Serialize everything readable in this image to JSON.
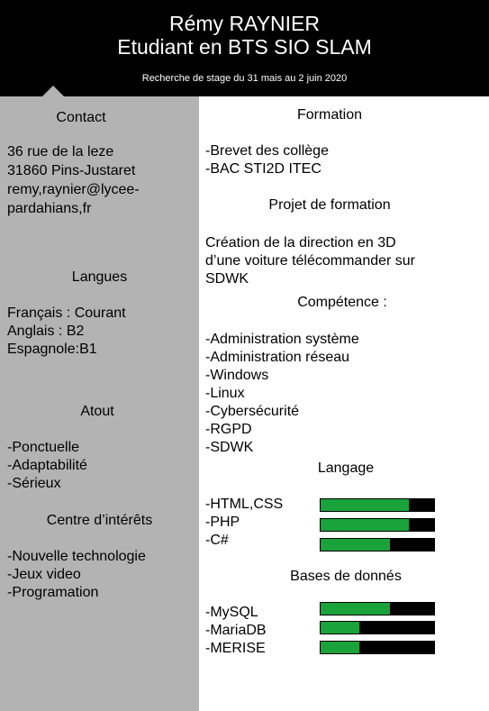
{
  "header": {
    "name": "Rémy RAYNIER",
    "title": "Etudiant en BTS SIO SLAM",
    "subtitle": "Recherche de stage du 31 mais au 2 juin 2020"
  },
  "sidebar": {
    "contact": {
      "heading": "Contact",
      "lines": [
        "36 rue de la leze",
        "31860 Pins-Justaret",
        "remy,raynier@lycee-",
        "pardahians,fr"
      ]
    },
    "langues": {
      "heading": "Langues",
      "lines": [
        "Français : Courant",
        "Anglais : B2",
        "Espagnole:B1"
      ]
    },
    "atout": {
      "heading": "Atout",
      "lines": [
        "-Ponctuelle",
        "-Adaptabilité",
        "-Sérieux"
      ]
    },
    "interets": {
      "heading": "Centre d’intérêts",
      "lines": [
        "-Nouvelle technologie",
        "-Jeux video",
        "-Programation"
      ]
    }
  },
  "main": {
    "formation": {
      "heading": "Formation",
      "lines": [
        "-Brevet des collège",
        "-BAC STI2D ITEC"
      ]
    },
    "projet": {
      "heading": "Projet de formation",
      "lines": [
        "Création de la direction en 3D",
        "d’une voiture télécommander sur",
        "SDWK"
      ]
    },
    "competence": {
      "heading": "Compétence :",
      "lines": [
        "-Administration système",
        "-Administration réseau",
        "-Windows",
        "-Linux",
        "-Cybersécurité",
        "-RGPD",
        "-SDWK"
      ]
    },
    "langage": {
      "heading": "Langage",
      "skills": [
        {
          "label": "-HTML,CSS",
          "level": 0.78
        },
        {
          "label": "-PHP",
          "level": 0.78
        },
        {
          "label": "-C#",
          "level": 0.61
        }
      ]
    },
    "bdd": {
      "heading": "Bases de donnés",
      "skills": [
        {
          "label": "-MySQL",
          "level": 0.61
        },
        {
          "label": "-MariaDB",
          "level": 0.34
        },
        {
          "label": "-MERISE",
          "level": 0.34
        }
      ]
    }
  },
  "colors": {
    "header_bg": "#000000",
    "sidebar_bg": "#b3b3b3",
    "bar_fill": "#1aa33b",
    "bar_track": "#000000"
  }
}
